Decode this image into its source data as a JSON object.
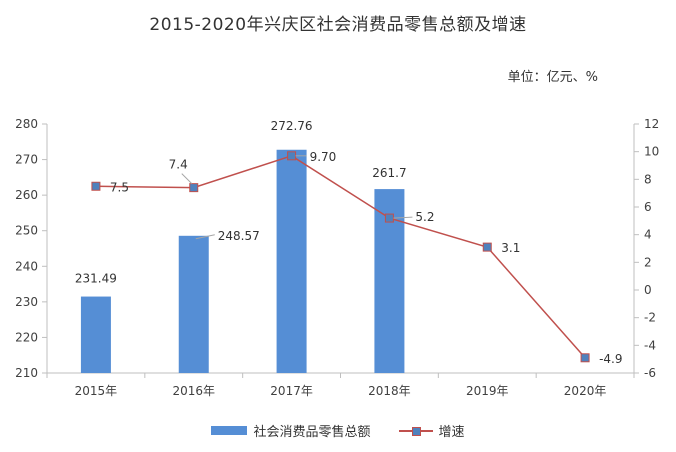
{
  "title": "2015-2020年兴庆区社会消费品零售总额及增速",
  "unit": "单位：亿元、%",
  "colors": {
    "bar": "#558ED5",
    "line": "#C0504D",
    "marker": "#4F81BD",
    "axis": "#BFBFBF"
  },
  "chart_data": {
    "type": "bar+line",
    "categories": [
      "2015年",
      "2016年",
      "2017年",
      "2018年",
      "2019年",
      "2020年"
    ],
    "series": [
      {
        "name": "社会消费品零售总额",
        "type": "bar",
        "axis": "left",
        "values": [
          231.49,
          248.57,
          272.76,
          261.7,
          null,
          null
        ],
        "labels": [
          "231.49",
          "248.57",
          "272.76",
          "261.7",
          "",
          ""
        ]
      },
      {
        "name": "增速",
        "type": "line",
        "axis": "right",
        "values": [
          7.5,
          7.4,
          9.7,
          5.2,
          3.1,
          -4.9
        ],
        "labels": [
          "7.5",
          "7.4",
          "9.70",
          "5.2",
          "3.1",
          "-4.9"
        ]
      }
    ],
    "left_axis": {
      "ylim": [
        210,
        280
      ],
      "ticks": [
        210,
        220,
        230,
        240,
        250,
        260,
        270,
        280
      ]
    },
    "right_axis": {
      "ylim": [
        -6,
        12
      ],
      "ticks": [
        -6,
        -4,
        -2,
        0,
        2,
        4,
        6,
        8,
        10,
        12
      ]
    },
    "grid": false,
    "legend_position": "bottom"
  },
  "legend": {
    "bar_label": "社会消费品零售总额",
    "line_label": "增速"
  }
}
